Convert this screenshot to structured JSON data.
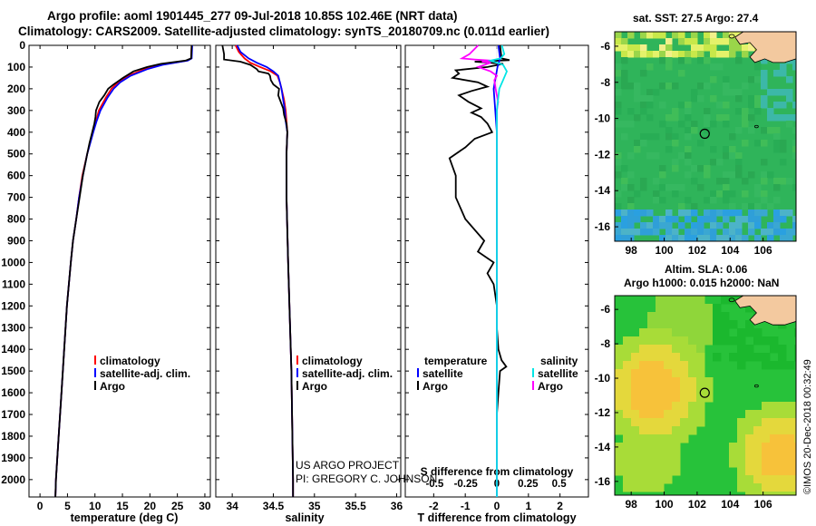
{
  "title_line1": "Argo profile: aoml 1901445_277 09-Jul-2018 10.85S 102.46E (NRT data)",
  "title_line2": "Climatology: CARS2009. Satellite-adjusted climatology: synTS_20180709.nc (0.011d earlier)",
  "sst_title": "sat. SST: 27.5 Argo: 27.4",
  "alt_title1": "Altim. SLA: 0.06",
  "alt_title2": "Argo h1000: 0.015 h2000: NaN",
  "credit_line1": "US ARGO PROJECT",
  "credit_line2": "PI: GREGORY C. JOHNSON",
  "imos_text": "©IMOS 20-Dec-2018 00:32:49",
  "colors": {
    "climatology": "#ff0000",
    "satellite": "#0000ff",
    "argo": "#000000",
    "sal_satellite": "#00e5e5",
    "sal_argo": "#ff00ff"
  },
  "chart_data": [
    {
      "type": "line",
      "name": "temperature",
      "xlabel": "temperature (deg C)",
      "ylim": [
        2080,
        0
      ],
      "xlim": [
        -2,
        31
      ],
      "xticks": [
        "0",
        "5",
        "10",
        "15",
        "20",
        "25",
        "30"
      ],
      "yticks": [
        "0",
        "100",
        "200",
        "300",
        "400",
        "500",
        "600",
        "700",
        "800",
        "900",
        "1000",
        "1100",
        "1200",
        "1300",
        "1400",
        "1500",
        "1600",
        "1700",
        "1800",
        "1900",
        "2000"
      ],
      "legend": [
        "climatology",
        "satellite-adj. clim.",
        "Argo"
      ],
      "series": [
        {
          "name": "climatology",
          "pressure": [
            0,
            60,
            70,
            90,
            110,
            140,
            170,
            200,
            240,
            300,
            350,
            400,
            500,
            600,
            700,
            800,
            900,
            1000,
            1200,
            1400,
            1600,
            1800,
            2000,
            2080
          ],
          "values": [
            27.6,
            27.5,
            26.8,
            22,
            19,
            16,
            14.2,
            13,
            12,
            10.7,
            10.2,
            9.6,
            8.6,
            7.7,
            7.1,
            6.6,
            6,
            5.6,
            4.9,
            4.4,
            3.9,
            3.4,
            2.9,
            2.8
          ]
        },
        {
          "name": "satellite-adj. clim.",
          "pressure": [
            0,
            60,
            70,
            90,
            110,
            140,
            170,
            200,
            240,
            300,
            350,
            400,
            500,
            600,
            700,
            800,
            900,
            1000,
            1200,
            1400,
            1600,
            1800,
            2000,
            2080
          ],
          "values": [
            27.7,
            27.6,
            26.9,
            22.3,
            19.5,
            16.5,
            14.6,
            13.4,
            12.3,
            11,
            10.3,
            9.7,
            8.6,
            7.8,
            7.1,
            6.6,
            6,
            5.6,
            4.9,
            4.4,
            3.9,
            3.4,
            2.9,
            2.8
          ]
        },
        {
          "name": "Argo",
          "pressure": [
            0,
            60,
            70,
            85,
            100,
            120,
            150,
            180,
            200,
            230,
            260,
            300,
            330,
            360,
            400,
            450,
            500,
            600,
            700,
            800,
            900,
            1000,
            1200,
            1400,
            1600,
            1800,
            2000,
            2080
          ],
          "values": [
            27.6,
            27.5,
            26.5,
            22,
            19.5,
            17,
            15.1,
            13.4,
            12.4,
            11.7,
            10.8,
            10.2,
            10.1,
            9.9,
            9.5,
            9,
            8.6,
            7.8,
            7.2,
            6.6,
            6,
            5.6,
            4.9,
            4.4,
            3.9,
            3.4,
            2.9,
            2.8
          ]
        }
      ]
    },
    {
      "type": "line",
      "name": "salinity",
      "xlabel": "salinity",
      "ylim": [
        2080,
        0
      ],
      "xlim": [
        33.8,
        36.05
      ],
      "xticks": [
        "34",
        "34.5",
        "35",
        "35.5",
        "36"
      ],
      "legend": [
        "climatology",
        "satellite-adj. clim.",
        "Argo"
      ],
      "series": [
        {
          "name": "climatology",
          "pressure": [
            0,
            30,
            60,
            80,
            100,
            120,
            140,
            170,
            200,
            250,
            300,
            350,
            400,
            500,
            700,
            1000,
            1500,
            2000,
            2080
          ],
          "values": [
            34.04,
            34.08,
            34.15,
            34.22,
            34.34,
            34.47,
            34.55,
            34.58,
            34.6,
            34.63,
            34.65,
            34.66,
            34.67,
            34.66,
            34.66,
            34.68,
            34.72,
            34.74,
            34.74
          ]
        },
        {
          "name": "satellite-adj. clim.",
          "pressure": [
            0,
            30,
            60,
            80,
            100,
            120,
            140,
            170,
            200,
            250,
            300,
            350,
            400,
            500,
            700,
            1000,
            1500,
            2000,
            2080
          ],
          "values": [
            34.06,
            34.1,
            34.2,
            34.3,
            34.42,
            34.5,
            34.56,
            34.58,
            34.6,
            34.62,
            34.64,
            34.65,
            34.67,
            34.66,
            34.66,
            34.68,
            34.72,
            34.74,
            34.74
          ]
        },
        {
          "name": "Argo",
          "pressure": [
            0,
            40,
            65,
            75,
            90,
            110,
            120,
            130,
            140,
            160,
            180,
            200,
            230,
            260,
            290,
            320,
            360,
            400,
            500,
            700,
            1000,
            1500,
            2000,
            2080
          ],
          "values": [
            33.88,
            33.9,
            33.9,
            34.1,
            34.22,
            34.3,
            34.32,
            34.44,
            34.46,
            34.47,
            34.5,
            34.57,
            34.56,
            34.59,
            34.62,
            34.63,
            34.66,
            34.67,
            34.66,
            34.66,
            34.68,
            34.72,
            34.74,
            34.74
          ]
        }
      ]
    },
    {
      "type": "line",
      "name": "difference",
      "xlabel": "T difference from climatology",
      "top_xlabel": "S difference from climatology",
      "ylim": [
        2080,
        0
      ],
      "xlim_T": [
        -2.9,
        2.9
      ],
      "xticks": [
        "-2",
        "-1",
        "0",
        "1",
        "2"
      ],
      "top_xticks": [
        "-0.5",
        "-0.25",
        "0",
        "0.25",
        "0.5"
      ],
      "legend_left_title": "temperature",
      "legend_right_title": "salinity",
      "legend_left": [
        "satellite",
        "Argo"
      ],
      "legend_right": [
        "satellite",
        "Argo"
      ],
      "series": [
        {
          "name": "T satellite",
          "pressure": [
            0,
            60,
            100,
            200,
            400,
            1000,
            2000,
            2080
          ],
          "values": [
            0.05,
            0.1,
            0.02,
            -0.1,
            0,
            0,
            0,
            0
          ]
        },
        {
          "name": "T Argo",
          "pressure": [
            0,
            60,
            68,
            75,
            85,
            100,
            115,
            130,
            150,
            170,
            190,
            210,
            230,
            260,
            290,
            310,
            330,
            360,
            400,
            430,
            470,
            520,
            600,
            700,
            800,
            900,
            950,
            1000,
            1050,
            1100,
            1200,
            1300,
            1400,
            1450,
            1480,
            1500,
            1600,
            1700,
            1800,
            2000,
            2080
          ],
          "values": [
            0.1,
            0.15,
            0.4,
            -0.7,
            0.2,
            -0.3,
            -1.3,
            -1.2,
            -1.4,
            -0.6,
            -0.3,
            -0.8,
            -1.2,
            -0.9,
            -0.5,
            -0.8,
            -0.5,
            -0.3,
            -0.15,
            -0.7,
            -1.0,
            -1.5,
            -1.3,
            -1.3,
            -1.0,
            -0.4,
            -0.6,
            -0.1,
            -0.3,
            -0.1,
            0,
            0,
            0.05,
            0.15,
            0.3,
            0.1,
            0.05,
            0,
            0,
            0,
            0
          ]
        },
        {
          "name": "S satellite",
          "pressure": [
            0,
            40,
            60,
            70,
            90,
            120,
            160,
            200,
            300,
            400,
            1000,
            2000,
            2080
          ],
          "values": [
            0.04,
            0.06,
            0.03,
            -0.05,
            0.05,
            0.08,
            0.05,
            0.02,
            0,
            0,
            0,
            0,
            0
          ]
        },
        {
          "name": "S Argo",
          "pressure": [
            0,
            40,
            60,
            65,
            70,
            75,
            80,
            100,
            110,
            120,
            140,
            160,
            200,
            260,
            300,
            400,
            500,
            1000,
            2000,
            2080
          ],
          "values": [
            -0.15,
            -0.22,
            -0.28,
            -0.18,
            -0.05,
            -0.12,
            -0.05,
            -0.15,
            -0.1,
            -0.05,
            0,
            -0.02,
            -0.01,
            0.01,
            0,
            0,
            0,
            0,
            0,
            0
          ]
        }
      ]
    },
    {
      "type": "heatmap",
      "name": "SST map",
      "xticks": [
        "98",
        "100",
        "102",
        "104",
        "106"
      ],
      "yticks": [
        "-6",
        "-8",
        "-10",
        "-12",
        "-14",
        "-16"
      ],
      "xlim": [
        97,
        108
      ],
      "ylim": [
        -16.8,
        -5.2
      ],
      "float_position": [
        102.46,
        -10.85
      ]
    },
    {
      "type": "heatmap",
      "name": "Altimetry map",
      "xticks": [
        "98",
        "100",
        "102",
        "104",
        "106"
      ],
      "yticks": [
        "-6",
        "-8",
        "-10",
        "-12",
        "-14",
        "-16"
      ],
      "xlim": [
        97,
        108
      ],
      "ylim": [
        -16.8,
        -5.2
      ],
      "float_position": [
        102.46,
        -10.85
      ]
    }
  ]
}
